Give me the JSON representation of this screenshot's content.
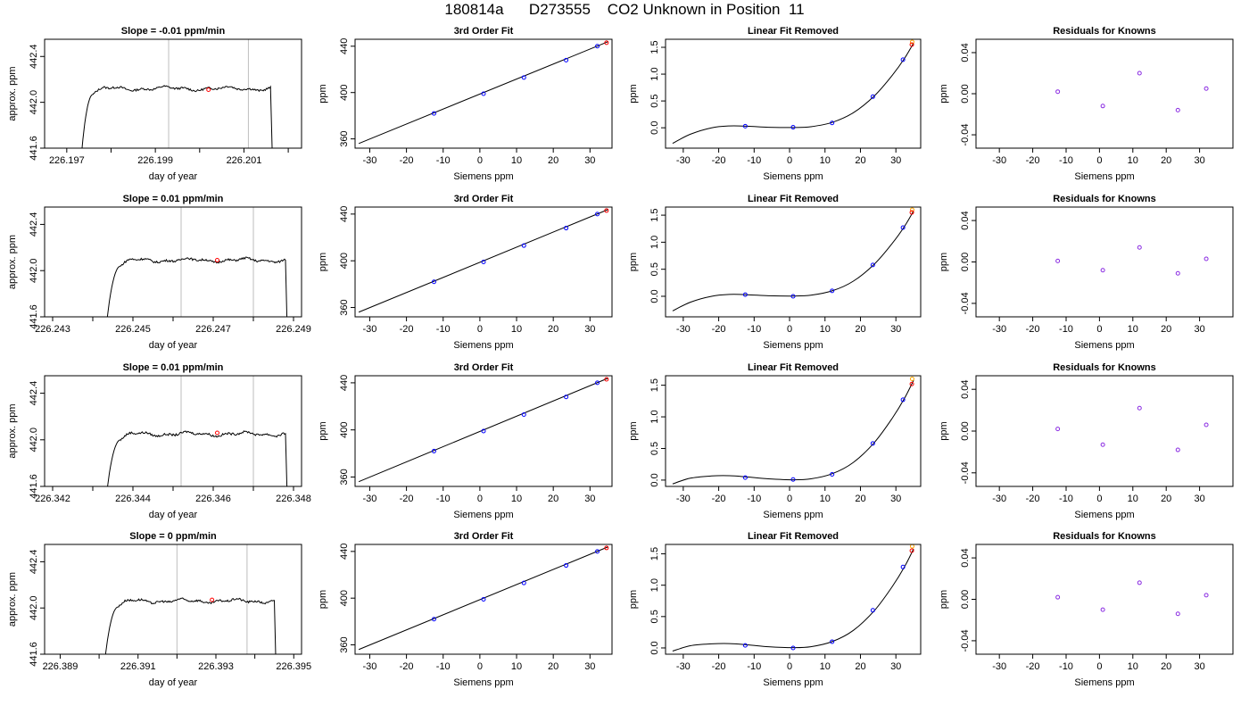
{
  "figure_title": "180814a      D273555    CO2 Unknown in Position  11",
  "colors": {
    "axis": "#000000",
    "guide": "#bebebe",
    "known": "#0000ff",
    "unknown": "#ff0000",
    "extra": "#ffa500",
    "residual": "#8a2be2"
  },
  "chart_data": [
    {
      "type": "line",
      "panel": "time-series",
      "row": 1,
      "title": "Slope =  -0.01  ppm/min",
      "xlabel": "day of year",
      "ylabel": "approx. ppm",
      "xlim": [
        226.1965,
        226.2023
      ],
      "ylim": [
        441.6,
        442.55
      ],
      "xticks": [
        226.197,
        226.198,
        226.199,
        226.2,
        226.201,
        226.202
      ],
      "xtick_labels": [
        "226.197",
        "",
        "226.199",
        "",
        "226.201",
        ""
      ],
      "yticks": [
        441.6,
        442.0,
        442.4
      ],
      "ytick_labels": [
        "441.6",
        "442.0",
        "442.4"
      ],
      "trace": {
        "start": 226.1973,
        "rise_end": 226.1976,
        "end": 226.2016,
        "plateau": 442.12
      },
      "vlines": [
        226.1993,
        226.2011
      ],
      "marker": {
        "x": 226.2002,
        "y": 442.11
      }
    },
    {
      "type": "line",
      "panel": "time-series",
      "row": 2,
      "title": "Slope =  0.01  ppm/min",
      "xlabel": "day of year",
      "ylabel": "approx. ppm",
      "xlim": [
        226.2428,
        226.2492
      ],
      "ylim": [
        441.6,
        442.55
      ],
      "xticks": [
        226.243,
        226.244,
        226.245,
        226.246,
        226.247,
        226.248,
        226.249
      ],
      "xtick_labels": [
        "226.243",
        "",
        "226.245",
        "",
        "226.247",
        "",
        "226.249"
      ],
      "yticks": [
        441.6,
        442.0,
        442.4
      ],
      "ytick_labels": [
        "441.6",
        "442.0",
        "442.4"
      ],
      "trace": {
        "start": 226.2443,
        "rise_end": 226.2447,
        "end": 226.2488,
        "plateau": 442.09
      },
      "vlines": [
        226.2462,
        226.248
      ],
      "marker": {
        "x": 226.2471,
        "y": 442.09
      }
    },
    {
      "type": "line",
      "panel": "time-series",
      "row": 3,
      "title": "Slope =  0.01  ppm/min",
      "xlabel": "day of year",
      "ylabel": "approx. ppm",
      "xlim": [
        226.3418,
        226.3482
      ],
      "ylim": [
        441.6,
        442.55
      ],
      "xticks": [
        226.342,
        226.343,
        226.344,
        226.345,
        226.346,
        226.347,
        226.348
      ],
      "xtick_labels": [
        "226.342",
        "",
        "226.344",
        "",
        "226.346",
        "",
        "226.348"
      ],
      "yticks": [
        441.6,
        442.0,
        442.4
      ],
      "ytick_labels": [
        "441.6",
        "442.0",
        "442.4"
      ],
      "trace": {
        "start": 226.3433,
        "rise_end": 226.3437,
        "end": 226.3478,
        "plateau": 442.05
      },
      "vlines": [
        226.3452,
        226.347
      ],
      "marker": {
        "x": 226.3461,
        "y": 442.06
      }
    },
    {
      "type": "line",
      "panel": "time-series",
      "row": 4,
      "title": "Slope =  0  ppm/min",
      "xlabel": "day of year",
      "ylabel": "approx. ppm",
      "xlim": [
        226.3886,
        226.3952
      ],
      "ylim": [
        441.6,
        442.55
      ],
      "xticks": [
        226.389,
        226.39,
        226.391,
        226.392,
        226.393,
        226.394,
        226.395
      ],
      "xtick_labels": [
        "226.389",
        "",
        "226.391",
        "",
        "226.393",
        "",
        "226.395"
      ],
      "yticks": [
        441.6,
        442.0,
        442.4
      ],
      "ytick_labels": [
        "441.6",
        "442.0",
        "442.4"
      ],
      "trace": {
        "start": 226.3901,
        "rise_end": 226.3905,
        "end": 226.3945,
        "plateau": 442.06
      },
      "vlines": [
        226.392,
        226.3938
      ],
      "marker": {
        "x": 226.3929,
        "y": 442.07
      }
    },
    {
      "type": "scatter",
      "panel": "fit",
      "row": 1,
      "title": "3rd Order Fit",
      "xlabel": "Siemens ppm",
      "ylabel": "ppm",
      "xlim": [
        -34,
        36
      ],
      "ylim": [
        352,
        446
      ],
      "xticks": [
        -30,
        -20,
        -10,
        0,
        10,
        20,
        30
      ],
      "yticks": [
        360,
        400,
        440
      ],
      "line": [
        [
          -33,
          356
        ],
        [
          35,
          444
        ]
      ],
      "points": [
        [
          -12.5,
          382
        ],
        [
          1,
          399
        ],
        [
          12,
          413
        ],
        [
          23.5,
          428
        ],
        [
          32,
          440
        ]
      ],
      "unknown": [
        [
          34.5,
          443
        ]
      ]
    },
    {
      "type": "scatter",
      "panel": "fit",
      "row": 2,
      "title": "3rd Order Fit",
      "xlabel": "Siemens ppm",
      "ylabel": "ppm",
      "xlim": [
        -34,
        36
      ],
      "ylim": [
        352,
        446
      ],
      "xticks": [
        -30,
        -20,
        -10,
        0,
        10,
        20,
        30
      ],
      "yticks": [
        360,
        400,
        440
      ],
      "line": [
        [
          -33,
          356
        ],
        [
          35,
          444
        ]
      ],
      "points": [
        [
          -12.5,
          382
        ],
        [
          1,
          399
        ],
        [
          12,
          413
        ],
        [
          23.5,
          428
        ],
        [
          32,
          440
        ]
      ],
      "unknown": [
        [
          34.5,
          443
        ]
      ]
    },
    {
      "type": "scatter",
      "panel": "fit",
      "row": 3,
      "title": "3rd Order Fit",
      "xlabel": "Siemens ppm",
      "ylabel": "ppm",
      "xlim": [
        -34,
        36
      ],
      "ylim": [
        352,
        446
      ],
      "xticks": [
        -30,
        -20,
        -10,
        0,
        10,
        20,
        30
      ],
      "yticks": [
        360,
        400,
        440
      ],
      "line": [
        [
          -33,
          356
        ],
        [
          35,
          444
        ]
      ],
      "points": [
        [
          -12.5,
          382
        ],
        [
          1,
          399
        ],
        [
          12,
          413
        ],
        [
          23.5,
          428
        ],
        [
          32,
          440
        ]
      ],
      "unknown": [
        [
          34.5,
          443
        ]
      ]
    },
    {
      "type": "scatter",
      "panel": "fit",
      "row": 4,
      "title": "3rd Order Fit",
      "xlabel": "Siemens ppm",
      "ylabel": "ppm",
      "xlim": [
        -34,
        36
      ],
      "ylim": [
        352,
        446
      ],
      "xticks": [
        -30,
        -20,
        -10,
        0,
        10,
        20,
        30
      ],
      "yticks": [
        360,
        400,
        440
      ],
      "line": [
        [
          -33,
          356
        ],
        [
          35,
          444
        ]
      ],
      "points": [
        [
          -12.5,
          382
        ],
        [
          1,
          399
        ],
        [
          12,
          413
        ],
        [
          23.5,
          428
        ],
        [
          32,
          440
        ]
      ],
      "unknown": [
        [
          34.5,
          443
        ]
      ]
    },
    {
      "type": "scatter",
      "panel": "linear-removed",
      "row": 1,
      "title": "Linear Fit Removed",
      "xlabel": "Siemens ppm",
      "ylabel": "ppm",
      "xlim": [
        -35,
        37
      ],
      "ylim": [
        -0.38,
        1.65
      ],
      "xticks": [
        -30,
        -20,
        -10,
        0,
        10,
        20,
        30
      ],
      "yticks": [
        0.0,
        0.5,
        1.0,
        1.5
      ],
      "ytick_labels": [
        "0.0",
        "0.5",
        "1.0",
        "1.5"
      ],
      "curve": [
        [
          -33,
          -0.29
        ],
        [
          -28,
          -0.12
        ],
        [
          -22,
          0.0
        ],
        [
          -17,
          0.035
        ],
        [
          -12,
          0.03
        ],
        [
          -6,
          0.01
        ],
        [
          1,
          0.005
        ],
        [
          6,
          0.02
        ],
        [
          12,
          0.1
        ],
        [
          18,
          0.28
        ],
        [
          24,
          0.6
        ],
        [
          29,
          0.98
        ],
        [
          32.5,
          1.3
        ],
        [
          35,
          1.58
        ]
      ],
      "points": [
        [
          -12.5,
          0.03
        ],
        [
          1,
          0.01
        ],
        [
          12,
          0.09
        ],
        [
          23.5,
          0.58
        ],
        [
          32,
          1.27
        ]
      ],
      "unknown": [
        [
          34.5,
          1.55
        ]
      ],
      "extra": [
        [
          34.6,
          1.6
        ]
      ]
    },
    {
      "type": "scatter",
      "panel": "linear-removed",
      "row": 2,
      "title": "Linear Fit Removed",
      "xlabel": "Siemens ppm",
      "ylabel": "ppm",
      "xlim": [
        -35,
        37
      ],
      "ylim": [
        -0.38,
        1.65
      ],
      "xticks": [
        -30,
        -20,
        -10,
        0,
        10,
        20,
        30
      ],
      "yticks": [
        0.0,
        0.5,
        1.0,
        1.5
      ],
      "ytick_labels": [
        "0.0",
        "0.5",
        "1.0",
        "1.5"
      ],
      "curve": [
        [
          -33,
          -0.27
        ],
        [
          -28,
          -0.11
        ],
        [
          -22,
          0.0
        ],
        [
          -17,
          0.035
        ],
        [
          -12,
          0.03
        ],
        [
          -6,
          0.01
        ],
        [
          1,
          0.005
        ],
        [
          6,
          0.02
        ],
        [
          12,
          0.1
        ],
        [
          18,
          0.28
        ],
        [
          24,
          0.6
        ],
        [
          29,
          0.98
        ],
        [
          32.5,
          1.3
        ],
        [
          35,
          1.58
        ]
      ],
      "points": [
        [
          -12.5,
          0.03
        ],
        [
          1,
          0.0
        ],
        [
          12,
          0.1
        ],
        [
          23.5,
          0.58
        ],
        [
          32,
          1.27
        ]
      ],
      "unknown": [
        [
          34.5,
          1.55
        ]
      ],
      "extra": [
        [
          34.6,
          1.6
        ]
      ]
    },
    {
      "type": "scatter",
      "panel": "linear-removed",
      "row": 3,
      "title": "Linear Fit Removed",
      "xlabel": "Siemens ppm",
      "ylabel": "ppm",
      "xlim": [
        -35,
        37
      ],
      "ylim": [
        -0.1,
        1.65
      ],
      "xticks": [
        -30,
        -20,
        -10,
        0,
        10,
        20,
        30
      ],
      "yticks": [
        0.0,
        0.5,
        1.0,
        1.5
      ],
      "ytick_labels": [
        "0.0",
        "0.5",
        "1.0",
        "1.5"
      ],
      "curve": [
        [
          -33,
          -0.06
        ],
        [
          -28,
          0.03
        ],
        [
          -22,
          0.065
        ],
        [
          -17,
          0.07
        ],
        [
          -12,
          0.05
        ],
        [
          -6,
          0.02
        ],
        [
          1,
          0.005
        ],
        [
          6,
          0.02
        ],
        [
          12,
          0.1
        ],
        [
          18,
          0.28
        ],
        [
          24,
          0.6
        ],
        [
          29,
          0.98
        ],
        [
          32.5,
          1.3
        ],
        [
          35,
          1.58
        ]
      ],
      "points": [
        [
          -12.5,
          0.04
        ],
        [
          1,
          0.01
        ],
        [
          12,
          0.09
        ],
        [
          23.5,
          0.58
        ],
        [
          32,
          1.27
        ]
      ],
      "unknown": [
        [
          34.5,
          1.52
        ]
      ],
      "extra": [
        [
          34.6,
          1.6
        ]
      ]
    },
    {
      "type": "scatter",
      "panel": "linear-removed",
      "row": 4,
      "title": "Linear Fit Removed",
      "xlabel": "Siemens ppm",
      "ylabel": "ppm",
      "xlim": [
        -35,
        37
      ],
      "ylim": [
        -0.1,
        1.65
      ],
      "xticks": [
        -30,
        -20,
        -10,
        0,
        10,
        20,
        30
      ],
      "yticks": [
        0.0,
        0.5,
        1.0,
        1.5
      ],
      "ytick_labels": [
        "0.0",
        "0.5",
        "1.0",
        "1.5"
      ],
      "curve": [
        [
          -33,
          -0.05
        ],
        [
          -28,
          0.035
        ],
        [
          -22,
          0.065
        ],
        [
          -17,
          0.07
        ],
        [
          -12,
          0.05
        ],
        [
          -6,
          0.02
        ],
        [
          1,
          0.005
        ],
        [
          6,
          0.02
        ],
        [
          12,
          0.1
        ],
        [
          18,
          0.28
        ],
        [
          24,
          0.6
        ],
        [
          29,
          0.98
        ],
        [
          32.5,
          1.3
        ],
        [
          35,
          1.58
        ]
      ],
      "points": [
        [
          -12.5,
          0.04
        ],
        [
          1,
          0.0
        ],
        [
          12,
          0.1
        ],
        [
          23.5,
          0.6
        ],
        [
          32,
          1.29
        ]
      ],
      "unknown": [
        [
          34.5,
          1.55
        ]
      ],
      "extra": [
        [
          34.6,
          1.62
        ]
      ]
    },
    {
      "type": "scatter",
      "panel": "residuals",
      "row": 1,
      "title": "Residuals for Knowns",
      "xlabel": "Siemens ppm",
      "ylabel": "ppm",
      "xlim": [
        -37,
        40
      ],
      "ylim": [
        -0.053,
        0.053
      ],
      "xticks": [
        -30,
        -20,
        -10,
        0,
        10,
        20,
        30
      ],
      "yticks": [
        -0.04,
        0.0,
        0.04
      ],
      "ytick_labels": [
        "-0.04",
        "0.00",
        "0.04"
      ],
      "points": [
        [
          -12.5,
          0.002
        ],
        [
          1,
          -0.012
        ],
        [
          12,
          0.02
        ],
        [
          23.5,
          -0.016
        ],
        [
          32,
          0.005
        ]
      ]
    },
    {
      "type": "scatter",
      "panel": "residuals",
      "row": 2,
      "title": "Residuals for Knowns",
      "xlabel": "Siemens ppm",
      "ylabel": "ppm",
      "xlim": [
        -37,
        40
      ],
      "ylim": [
        -0.053,
        0.053
      ],
      "xticks": [
        -30,
        -20,
        -10,
        0,
        10,
        20,
        30
      ],
      "yticks": [
        -0.04,
        0.0,
        0.04
      ],
      "ytick_labels": [
        "-0.04",
        "0.00",
        "0.04"
      ],
      "points": [
        [
          -12.5,
          0.001
        ],
        [
          1,
          -0.008
        ],
        [
          12,
          0.014
        ],
        [
          23.5,
          -0.011
        ],
        [
          32,
          0.003
        ]
      ]
    },
    {
      "type": "scatter",
      "panel": "residuals",
      "row": 3,
      "title": "Residuals for Knowns",
      "xlabel": "Siemens ppm",
      "ylabel": "ppm",
      "xlim": [
        -37,
        40
      ],
      "ylim": [
        -0.053,
        0.053
      ],
      "xticks": [
        -30,
        -20,
        -10,
        0,
        10,
        20,
        30
      ],
      "yticks": [
        -0.04,
        0.0,
        0.04
      ],
      "ytick_labels": [
        "-0.04",
        "0.00",
        "0.04"
      ],
      "points": [
        [
          -12.5,
          0.002
        ],
        [
          1,
          -0.013
        ],
        [
          12,
          0.022
        ],
        [
          23.5,
          -0.018
        ],
        [
          32,
          0.006
        ]
      ]
    },
    {
      "type": "scatter",
      "panel": "residuals",
      "row": 4,
      "title": "Residuals for Knowns",
      "xlabel": "Siemens ppm",
      "ylabel": "ppm",
      "xlim": [
        -37,
        40
      ],
      "ylim": [
        -0.053,
        0.053
      ],
      "xticks": [
        -30,
        -20,
        -10,
        0,
        10,
        20,
        30
      ],
      "yticks": [
        -0.04,
        0.0,
        0.04
      ],
      "ytick_labels": [
        "-0.04",
        "0.00",
        "0.04"
      ],
      "points": [
        [
          -12.5,
          0.002
        ],
        [
          1,
          -0.01
        ],
        [
          12,
          0.016
        ],
        [
          23.5,
          -0.014
        ],
        [
          32,
          0.004
        ]
      ]
    }
  ]
}
